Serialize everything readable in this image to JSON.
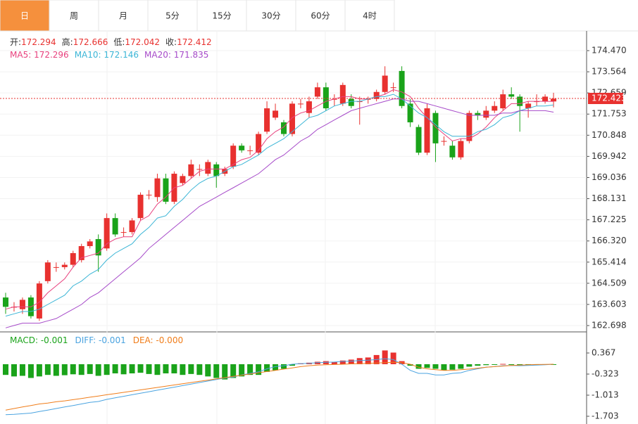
{
  "tabs": [
    "日",
    "周",
    "月",
    "5分",
    "15分",
    "30分",
    "60分",
    "4时"
  ],
  "selected_tab": 0,
  "chart_data": [
    {
      "type": "candlestick",
      "up_color": "#e8312f",
      "down_color": "#1aa31a",
      "ohlc_legend": [
        {
          "label": "开:",
          "value": 172.294
        },
        {
          "label": "高:",
          "value": 172.666
        },
        {
          "label": "低:",
          "value": 172.042
        },
        {
          "label": "收:",
          "value": 172.412
        }
      ],
      "last_price": 172.423,
      "ylim": [
        162.427,
        175.283
      ],
      "yticks": [
        {
          "value": 174.47,
          "label": "174.470"
        },
        173.564,
        172.659,
        171.753,
        170.848,
        169.942,
        169.036,
        168.131,
        167.225,
        {
          "value": 166.32,
          "label": "166.320"
        },
        165.414,
        164.509,
        163.603,
        162.698
      ],
      "grid": true,
      "open": [
        163.9,
        163.5,
        163.4,
        163.9,
        163.0,
        164.6,
        165.2,
        165.2,
        165.3,
        165.5,
        166.1,
        166.4,
        166.0,
        167.3,
        166.7,
        166.7,
        167.3,
        168.3,
        168.2,
        169.0,
        168.0,
        168.8,
        169.1,
        169.4,
        169.2,
        169.6,
        169.2,
        169.5,
        170.4,
        170.2,
        170.1,
        171.0,
        171.6,
        171.4,
        170.9,
        172.2,
        171.8,
        172.5,
        172.9,
        172.4,
        172.2,
        172.4,
        172.3,
        172.4,
        172.4,
        172.7,
        172.9,
        173.6,
        172.2,
        171.2,
        170.1,
        171.8,
        170.6,
        170.4,
        169.9,
        170.6,
        171.8,
        171.6,
        171.9,
        172.0,
        172.6,
        172.5,
        172.0,
        172.3,
        172.3,
        172.294
      ],
      "high": [
        164.1,
        163.7,
        163.9,
        164.0,
        164.6,
        165.5,
        165.4,
        165.4,
        165.9,
        166.2,
        166.4,
        166.6,
        167.5,
        167.5,
        166.9,
        167.3,
        168.4,
        168.5,
        169.2,
        169.2,
        169.3,
        169.2,
        169.8,
        169.6,
        169.8,
        169.7,
        169.5,
        170.5,
        170.5,
        170.4,
        171.0,
        172.3,
        172.2,
        171.5,
        172.3,
        172.4,
        172.5,
        173.1,
        173.1,
        172.6,
        173.1,
        172.6,
        172.5,
        172.5,
        172.8,
        173.8,
        173.1,
        173.8,
        172.4,
        171.3,
        172.2,
        171.9,
        170.8,
        170.6,
        170.7,
        171.9,
        171.9,
        172.1,
        172.3,
        172.8,
        172.9,
        172.6,
        172.3,
        172.6,
        172.6,
        172.666
      ],
      "low": [
        163.2,
        163.3,
        163.2,
        163.0,
        162.9,
        164.5,
        165.0,
        165.1,
        165.2,
        165.4,
        166.0,
        165.0,
        165.9,
        166.5,
        166.5,
        166.6,
        167.2,
        168.1,
        168.0,
        167.9,
        167.9,
        168.7,
        169.0,
        169.1,
        169.1,
        168.6,
        169.1,
        169.4,
        170.1,
        170.0,
        170.0,
        170.9,
        171.5,
        170.8,
        170.8,
        172.0,
        171.6,
        172.4,
        171.9,
        172.1,
        172.1,
        172.0,
        171.3,
        172.2,
        172.3,
        172.6,
        172.7,
        172.0,
        171.2,
        170.0,
        170.0,
        169.7,
        170.4,
        169.8,
        169.8,
        170.5,
        171.5,
        171.5,
        171.8,
        171.9,
        172.4,
        171.0,
        171.6,
        172.1,
        172.2,
        172.042
      ],
      "close": [
        163.5,
        163.5,
        163.8,
        163.1,
        164.5,
        165.4,
        165.2,
        165.3,
        165.8,
        166.1,
        166.3,
        165.7,
        167.3,
        166.6,
        166.7,
        167.2,
        168.3,
        168.3,
        169.0,
        168.0,
        169.2,
        169.1,
        169.6,
        169.4,
        169.7,
        169.1,
        169.4,
        170.4,
        170.2,
        170.2,
        170.9,
        172.0,
        171.9,
        170.9,
        172.2,
        172.2,
        172.3,
        172.9,
        172.0,
        172.4,
        173.0,
        172.1,
        172.3,
        172.4,
        172.7,
        173.4,
        172.9,
        172.1,
        171.4,
        170.1,
        172.0,
        170.5,
        170.6,
        169.9,
        170.6,
        171.8,
        171.7,
        171.9,
        172.1,
        172.6,
        172.5,
        172.1,
        172.2,
        172.3,
        172.5,
        172.412
      ],
      "series": [
        {
          "name": "MA5: ",
          "value": 172.296,
          "color": "#e8407d",
          "values": [
            163.4,
            163.5,
            163.5,
            163.5,
            163.7,
            164.1,
            164.4,
            164.7,
            165.2,
            165.6,
            165.7,
            165.8,
            166.2,
            166.4,
            166.5,
            166.5,
            167.2,
            167.4,
            167.9,
            168.2,
            168.6,
            168.7,
            169.0,
            169.3,
            169.4,
            169.4,
            169.4,
            169.6,
            169.8,
            169.9,
            170.2,
            170.7,
            171.0,
            171.2,
            171.6,
            171.8,
            171.9,
            172.1,
            172.3,
            172.4,
            172.5,
            172.5,
            172.4,
            172.4,
            172.5,
            172.6,
            172.8,
            172.7,
            172.5,
            172.0,
            171.6,
            171.2,
            170.9,
            170.6,
            170.7,
            170.7,
            170.9,
            171.2,
            171.6,
            171.9,
            172.2,
            172.2,
            172.3,
            172.3,
            172.3,
            172.296
          ]
        },
        {
          "name": "MA10: ",
          "value": 172.146,
          "color": "#3bb5d6",
          "values": [
            163.1,
            163.2,
            163.3,
            163.3,
            163.4,
            163.6,
            163.8,
            164.0,
            164.4,
            164.6,
            164.9,
            165.1,
            165.5,
            165.8,
            166.0,
            166.2,
            166.6,
            166.9,
            167.3,
            167.4,
            167.8,
            168.1,
            168.5,
            168.8,
            169.0,
            169.1,
            169.3,
            169.5,
            169.6,
            169.8,
            170.0,
            170.3,
            170.5,
            170.7,
            171.0,
            171.3,
            171.6,
            171.7,
            171.9,
            172.1,
            172.2,
            172.3,
            172.3,
            172.4,
            172.5,
            172.5,
            172.6,
            172.4,
            172.1,
            171.8,
            171.6,
            171.3,
            171.0,
            170.8,
            170.8,
            170.8,
            171.0,
            171.1,
            171.3,
            171.6,
            171.7,
            171.9,
            172.0,
            172.1,
            172.1,
            172.146
          ]
        },
        {
          "name": "MA20: ",
          "value": 171.835,
          "color": "#a64ac9",
          "values": [
            162.6,
            162.7,
            162.8,
            162.8,
            162.8,
            162.9,
            163.0,
            163.2,
            163.4,
            163.6,
            163.9,
            164.1,
            164.4,
            164.7,
            165.0,
            165.3,
            165.6,
            166.0,
            166.3,
            166.6,
            166.9,
            167.2,
            167.5,
            167.8,
            168.0,
            168.2,
            168.4,
            168.6,
            168.8,
            169.0,
            169.2,
            169.5,
            169.8,
            170.0,
            170.3,
            170.6,
            170.8,
            171.1,
            171.3,
            171.5,
            171.7,
            171.9,
            172.0,
            172.1,
            172.2,
            172.3,
            172.4,
            172.4,
            172.3,
            172.3,
            172.2,
            172.1,
            172.0,
            171.9,
            171.8,
            171.7,
            171.7,
            171.7,
            171.7,
            171.8,
            171.8,
            171.9,
            171.9,
            171.9,
            171.9,
            171.835
          ]
        }
      ]
    },
    {
      "type": "macd",
      "ylim": [
        -1.956,
        1.034
      ],
      "yticks": [
        0.367,
        -0.323,
        -1.013,
        -1.703
      ],
      "up_color": "#e8312f",
      "down_color": "#1aa31a",
      "series": [
        {
          "name": "MACD: ",
          "value": -0.001,
          "color": "#1aa31a",
          "kind": "bar",
          "values": [
            -0.35,
            -0.4,
            -0.38,
            -0.45,
            -0.4,
            -0.35,
            -0.38,
            -0.36,
            -0.33,
            -0.35,
            -0.32,
            -0.38,
            -0.35,
            -0.3,
            -0.33,
            -0.3,
            -0.28,
            -0.32,
            -0.35,
            -0.3,
            -0.3,
            -0.35,
            -0.32,
            -0.35,
            -0.4,
            -0.45,
            -0.5,
            -0.45,
            -0.4,
            -0.35,
            -0.35,
            -0.25,
            -0.2,
            -0.15,
            -0.05,
            0.03,
            0.05,
            0.08,
            0.1,
            0.08,
            0.12,
            0.15,
            0.2,
            0.22,
            0.3,
            0.45,
            0.38,
            0.1,
            -0.05,
            -0.15,
            -0.12,
            -0.15,
            -0.2,
            -0.18,
            -0.15,
            -0.08,
            -0.05,
            -0.03,
            -0.02,
            0.01,
            -0.01,
            -0.03,
            -0.02,
            -0.01,
            -0.001,
            -0.001
          ]
        },
        {
          "name": "DIFF: ",
          "value": -0.001,
          "color": "#4aa3e0",
          "kind": "line",
          "values": [
            -1.65,
            -1.64,
            -1.62,
            -1.6,
            -1.55,
            -1.5,
            -1.45,
            -1.4,
            -1.35,
            -1.3,
            -1.25,
            -1.22,
            -1.15,
            -1.1,
            -1.05,
            -1.0,
            -0.95,
            -0.9,
            -0.85,
            -0.8,
            -0.75,
            -0.7,
            -0.65,
            -0.6,
            -0.55,
            -0.5,
            -0.45,
            -0.42,
            -0.35,
            -0.3,
            -0.25,
            -0.15,
            -0.08,
            -0.05,
            0.0,
            0.02,
            0.03,
            0.05,
            0.06,
            0.07,
            0.09,
            0.1,
            0.12,
            0.13,
            0.15,
            0.18,
            0.15,
            0.0,
            -0.2,
            -0.3,
            -0.3,
            -0.35,
            -0.35,
            -0.3,
            -0.28,
            -0.2,
            -0.15,
            -0.1,
            -0.08,
            -0.05,
            -0.04,
            -0.05,
            -0.04,
            -0.03,
            -0.02,
            -0.001
          ]
        },
        {
          "name": "DEA: ",
          "value": 0,
          "value_label": "-0.000",
          "color": "#f07d1a",
          "kind": "line",
          "values": [
            -1.5,
            -1.45,
            -1.4,
            -1.35,
            -1.3,
            -1.27,
            -1.23,
            -1.2,
            -1.16,
            -1.12,
            -1.08,
            -1.04,
            -1.0,
            -0.96,
            -0.92,
            -0.88,
            -0.84,
            -0.8,
            -0.76,
            -0.72,
            -0.68,
            -0.64,
            -0.6,
            -0.56,
            -0.52,
            -0.48,
            -0.44,
            -0.4,
            -0.36,
            -0.32,
            -0.28,
            -0.24,
            -0.2,
            -0.16,
            -0.12,
            -0.08,
            -0.05,
            -0.03,
            -0.02,
            -0.01,
            0.0,
            0.01,
            0.02,
            0.03,
            0.04,
            0.05,
            0.06,
            0.05,
            0.0,
            -0.1,
            -0.15,
            -0.18,
            -0.2,
            -0.2,
            -0.18,
            -0.16,
            -0.13,
            -0.1,
            -0.08,
            -0.06,
            -0.04,
            -0.03,
            -0.02,
            -0.01,
            -0.005,
            0
          ]
        }
      ]
    }
  ]
}
